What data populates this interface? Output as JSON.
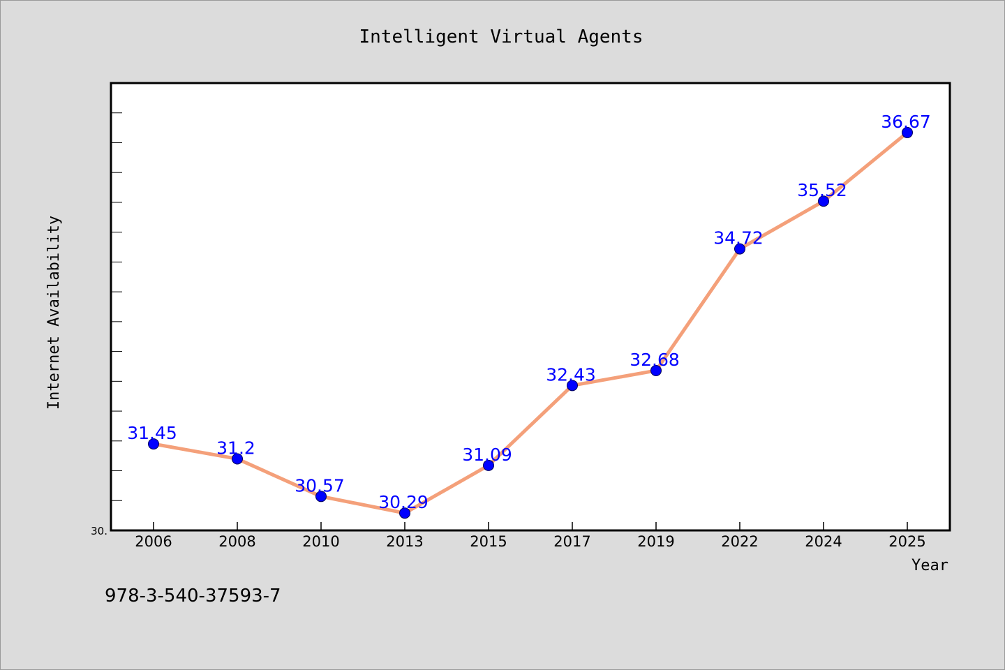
{
  "chart_data": {
    "type": "line",
    "title": "Intelligent Virtual Agents",
    "xlabel": "Year",
    "ylabel": "Internet Availability",
    "categories": [
      "2006",
      "2008",
      "2010",
      "2013",
      "2015",
      "2017",
      "2019",
      "2022",
      "2024",
      "2025"
    ],
    "series": [
      {
        "values": [
          31.45,
          31.2,
          30.57,
          30.29,
          31.09,
          32.43,
          32.68,
          34.72,
          35.52,
          36.67
        ]
      }
    ],
    "data_labels": [
      "31.45",
      "31.2",
      "30.57",
      "30.29",
      "31.09",
      "32.43",
      "32.68",
      "34.72",
      "35.52",
      "36.67"
    ],
    "ylim": [
      30.0,
      37.5
    ],
    "y_tick_label": "30.",
    "grid": false,
    "line_color": "#f4a07a",
    "marker_color": "#0000ff",
    "label_color": "#0000ff",
    "background": "#dcdcdc",
    "plot_background": "#ffffff"
  },
  "footer": {
    "isbn": "978-3-540-37593-7"
  }
}
